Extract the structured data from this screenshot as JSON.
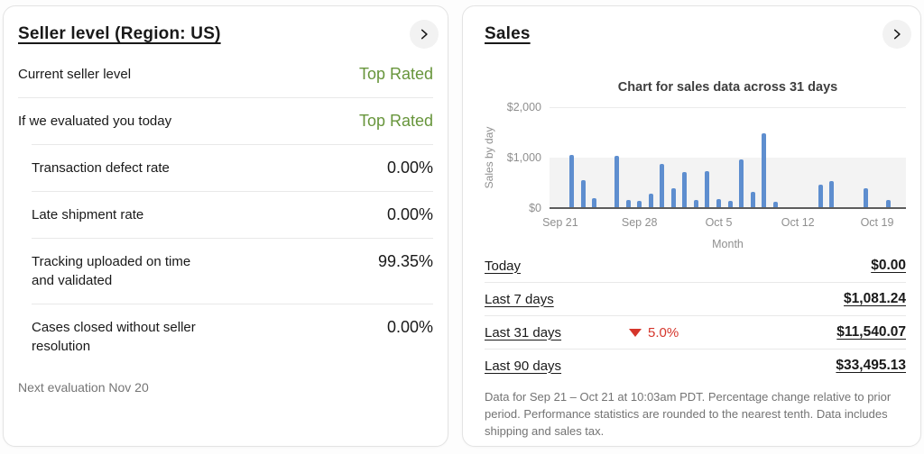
{
  "seller_card": {
    "title": "Seller level (Region: US)",
    "rows": [
      {
        "label": "Current seller level",
        "value": "Top Rated",
        "value_style": "green",
        "indent": false
      },
      {
        "label": "If we evaluated you today",
        "value": "Top Rated",
        "value_style": "green",
        "indent": false
      },
      {
        "label": "Transaction defect rate",
        "value": "0.00%",
        "value_style": "plain",
        "indent": true
      },
      {
        "label": "Late shipment rate",
        "value": "0.00%",
        "value_style": "plain",
        "indent": true
      },
      {
        "label": "Tracking uploaded on time and validated",
        "value": "99.35%",
        "value_style": "plain",
        "indent": true
      },
      {
        "label": "Cases closed without seller resolution",
        "value": "0.00%",
        "value_style": "plain",
        "indent": true
      }
    ],
    "footnote": "Next evaluation Nov 20"
  },
  "sales_card": {
    "title": "Sales",
    "rows": [
      {
        "label": "Today",
        "value": "$0.00",
        "change": null
      },
      {
        "label": "Last 7 days",
        "value": "$1,081.24",
        "change": null
      },
      {
        "label": "Last 31 days",
        "value": "$11,540.07",
        "change": "5.0%",
        "change_dir": "down"
      },
      {
        "label": "Last 90 days",
        "value": "$33,495.13",
        "change": null
      }
    ],
    "footnote": "Data for Sep 21 – Oct 21 at 10:03am PDT. Percentage change relative to prior period. Performance statistics are rounded to the nearest tenth. Data includes shipping and sales tax."
  },
  "chart_data": {
    "type": "bar",
    "title": "Chart for sales data across 31 days",
    "xlabel": "Month",
    "ylabel": "Sales by day",
    "ylim": [
      0,
      2000
    ],
    "ytick_labels": [
      "$0",
      "$1,000",
      "$2,000"
    ],
    "grid": "band 0-1000 shaded, gridline at 2000",
    "legend": "none",
    "x": [
      "Sep 21",
      "Sep 22",
      "Sep 23",
      "Sep 24",
      "Sep 25",
      "Sep 26",
      "Sep 27",
      "Sep 28",
      "Sep 29",
      "Sep 30",
      "Oct 1",
      "Oct 2",
      "Oct 3",
      "Oct 4",
      "Oct 5",
      "Oct 6",
      "Oct 7",
      "Oct 8",
      "Oct 9",
      "Oct 10",
      "Oct 11",
      "Oct 12",
      "Oct 13",
      "Oct 14",
      "Oct 15",
      "Oct 16",
      "Oct 17",
      "Oct 18",
      "Oct 19",
      "Oct 20",
      "Oct 21"
    ],
    "values": [
      0,
      1030,
      530,
      170,
      0,
      1010,
      145,
      130,
      265,
      860,
      380,
      690,
      145,
      720,
      160,
      130,
      940,
      300,
      1460,
      115,
      0,
      0,
      0,
      450,
      520,
      0,
      0,
      370,
      0,
      135,
      0
    ],
    "xticks": [
      {
        "index": 0,
        "label": "Sep 21"
      },
      {
        "index": 7,
        "label": "Sep 28"
      },
      {
        "index": 14,
        "label": "Oct 5"
      },
      {
        "index": 21,
        "label": "Oct 12"
      },
      {
        "index": 28,
        "label": "Oct 19"
      }
    ]
  },
  "icons": {
    "chevron_right": "›",
    "down_triangle": "▼"
  },
  "colors": {
    "accent_green": "#67953b",
    "bar_blue": "#5e8ecf",
    "negative_red": "#d5352b",
    "text_primary": "#191919",
    "text_muted": "#757575",
    "axis_gray": "#8f8f8f",
    "divider": "#e8e8e8",
    "band_gray": "#f3f3f3"
  }
}
